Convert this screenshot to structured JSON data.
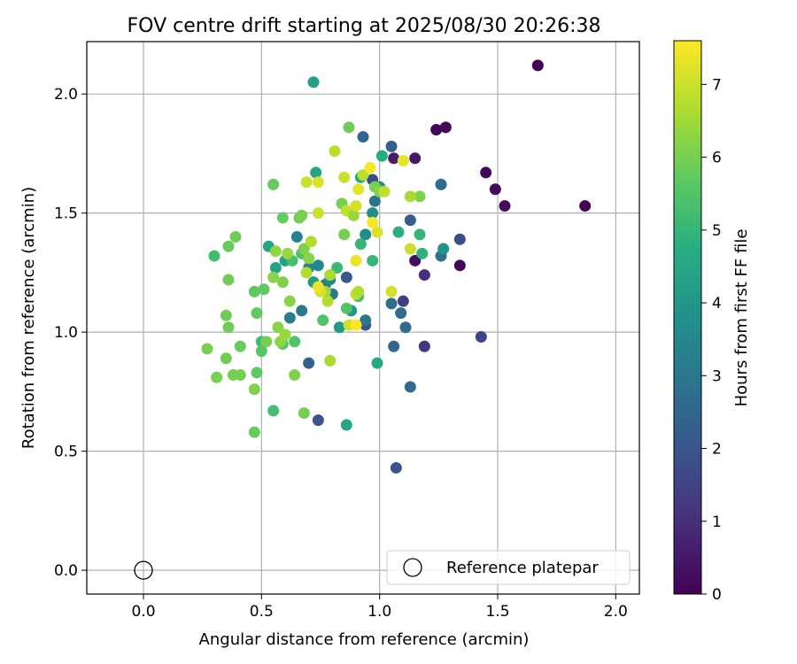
{
  "chart_data": {
    "type": "scatter",
    "title": "FOV centre drift starting at 2025/08/30 20:26:38",
    "xlabel": "Angular distance from reference (arcmin)",
    "ylabel": "Rotation from reference (arcmin)",
    "xlim": [
      -0.24,
      2.1
    ],
    "ylim": [
      -0.1,
      2.22
    ],
    "xticks": [
      0.0,
      0.5,
      1.0,
      1.5,
      2.0
    ],
    "xtick_labels": [
      "0.0",
      "0.5",
      "1.0",
      "1.5",
      "2.0"
    ],
    "yticks": [
      0.0,
      0.5,
      1.0,
      1.5,
      2.0
    ],
    "ytick_labels": [
      "0.0",
      "0.5",
      "1.0",
      "1.5",
      "2.0"
    ],
    "grid": true,
    "legend": {
      "position": "lower-right",
      "label": "Reference platepar"
    },
    "reference_point": {
      "x": 0.0,
      "y": 0.0,
      "marker": "open-circle"
    },
    "colorbar": {
      "label": "Hours from first FF file",
      "colormap": "viridis",
      "min": 0,
      "max": 7.6,
      "ticks": [
        0,
        1,
        2,
        3,
        4,
        5,
        6,
        7
      ],
      "tick_labels": [
        "0",
        "1",
        "2",
        "3",
        "4",
        "5",
        "6",
        "7"
      ]
    },
    "points": [
      [
        1.67,
        2.12,
        0.0
      ],
      [
        1.87,
        1.53,
        0.0
      ],
      [
        1.53,
        1.53,
        0.2
      ],
      [
        1.49,
        1.6,
        0.2
      ],
      [
        1.45,
        1.67,
        0.1
      ],
      [
        1.28,
        1.86,
        0.1
      ],
      [
        1.24,
        1.85,
        0.1
      ],
      [
        1.34,
        1.28,
        0.1
      ],
      [
        1.15,
        1.3,
        0.3
      ],
      [
        1.15,
        1.73,
        0.5
      ],
      [
        1.06,
        1.73,
        0.6
      ],
      [
        1.19,
        1.24,
        1.0
      ],
      [
        1.19,
        0.94,
        1.2
      ],
      [
        1.1,
        1.13,
        1.4
      ],
      [
        1.43,
        0.98,
        1.6
      ],
      [
        1.34,
        1.39,
        1.8
      ],
      [
        1.07,
        0.43,
        2.0
      ],
      [
        0.74,
        0.63,
        2.0
      ],
      [
        1.13,
        1.47,
        2.2
      ],
      [
        1.05,
        1.78,
        2.3
      ],
      [
        0.93,
        1.82,
        2.5
      ],
      [
        0.97,
        1.64,
        1.8
      ],
      [
        0.94,
        1.03,
        1.9
      ],
      [
        0.86,
        1.23,
        2.1
      ],
      [
        0.7,
        0.87,
        2.4
      ],
      [
        1.06,
        0.94,
        2.5
      ],
      [
        1.11,
        1.02,
        2.6
      ],
      [
        1.13,
        0.77,
        2.6
      ],
      [
        1.26,
        1.62,
        2.7
      ],
      [
        1.26,
        1.32,
        2.8
      ],
      [
        1.09,
        1.08,
        2.7
      ],
      [
        1.05,
        1.12,
        2.8
      ],
      [
        0.98,
        1.55,
        2.9
      ],
      [
        0.94,
        1.05,
        3.0
      ],
      [
        0.8,
        1.16,
        3.0
      ],
      [
        0.77,
        1.2,
        3.1
      ],
      [
        0.67,
        1.09,
        3.1
      ],
      [
        0.62,
        1.06,
        3.2
      ],
      [
        0.65,
        1.4,
        3.3
      ],
      [
        0.7,
        1.27,
        3.4
      ],
      [
        0.74,
        1.28,
        3.5
      ],
      [
        0.79,
        1.22,
        3.6
      ],
      [
        0.94,
        1.41,
        3.6
      ],
      [
        0.97,
        1.5,
        3.7
      ],
      [
        1.0,
        1.61,
        3.8
      ],
      [
        1.27,
        1.35,
        3.9
      ],
      [
        0.88,
        1.09,
        4.0
      ],
      [
        0.83,
        1.02,
        4.1
      ],
      [
        0.72,
        1.21,
        4.2
      ],
      [
        0.6,
        1.3,
        4.3
      ],
      [
        0.56,
        1.27,
        4.4
      ],
      [
        0.53,
        1.36,
        4.4
      ],
      [
        0.72,
        2.05,
        4.3
      ],
      [
        0.73,
        1.67,
        4.4
      ],
      [
        0.86,
        0.61,
        4.5
      ],
      [
        0.99,
        0.87,
        4.6
      ],
      [
        0.92,
        1.65,
        4.6
      ],
      [
        1.01,
        1.74,
        4.7
      ],
      [
        1.08,
        1.42,
        4.8
      ],
      [
        1.18,
        1.33,
        4.9
      ],
      [
        1.17,
        1.41,
        5.0
      ],
      [
        0.97,
        1.3,
        5.0
      ],
      [
        0.92,
        1.37,
        5.0
      ],
      [
        0.82,
        1.27,
        5.1
      ],
      [
        0.5,
        0.96,
        5.2
      ],
      [
        0.3,
        1.32,
        5.2
      ],
      [
        0.55,
        0.67,
        5.3
      ],
      [
        0.63,
        1.3,
        5.3
      ],
      [
        0.67,
        1.33,
        5.4
      ],
      [
        0.91,
        1.15,
        5.4
      ],
      [
        0.86,
        1.1,
        5.5
      ],
      [
        0.76,
        1.05,
        5.5
      ],
      [
        0.64,
        0.96,
        5.5
      ],
      [
        0.59,
        0.95,
        5.6
      ],
      [
        0.5,
        0.92,
        5.6
      ],
      [
        0.51,
        1.18,
        5.7
      ],
      [
        0.47,
        1.17,
        5.7
      ],
      [
        0.48,
        1.08,
        5.7
      ],
      [
        0.41,
        0.94,
        5.8
      ],
      [
        0.39,
        1.4,
        5.9
      ],
      [
        0.36,
        1.36,
        5.8
      ],
      [
        0.36,
        1.22,
        5.9
      ],
      [
        0.35,
        1.07,
        5.9
      ],
      [
        0.35,
        0.89,
        5.9
      ],
      [
        0.31,
        0.81,
        6.0
      ],
      [
        0.27,
        0.93,
        6.0
      ],
      [
        0.36,
        1.02,
        5.9
      ],
      [
        0.41,
        0.82,
        6.0
      ],
      [
        0.38,
        0.82,
        6.0
      ],
      [
        0.47,
        0.76,
        6.1
      ],
      [
        0.47,
        0.58,
        5.8
      ],
      [
        0.48,
        0.83,
        5.7
      ],
      [
        0.52,
        0.96,
        6.0
      ],
      [
        0.55,
        1.62,
        5.8
      ],
      [
        0.59,
        1.48,
        5.8
      ],
      [
        0.66,
        1.48,
        5.9
      ],
      [
        0.67,
        1.49,
        6.0
      ],
      [
        0.68,
        1.35,
        6.1
      ],
      [
        0.7,
        1.31,
        6.2
      ],
      [
        0.68,
        0.66,
        6.0
      ],
      [
        0.64,
        0.82,
        6.1
      ],
      [
        0.62,
        1.13,
        6.2
      ],
      [
        0.57,
        1.02,
        6.2
      ],
      [
        0.59,
        1.21,
        6.1
      ],
      [
        0.55,
        1.23,
        6.2
      ],
      [
        0.56,
        1.34,
        6.3
      ],
      [
        0.61,
        1.33,
        6.4
      ],
      [
        0.58,
        0.96,
        6.3
      ],
      [
        0.6,
        0.99,
        6.4
      ],
      [
        0.85,
        1.41,
        6.0
      ],
      [
        0.84,
        1.54,
        6.0
      ],
      [
        0.87,
        1.86,
        5.9
      ],
      [
        0.98,
        1.61,
        6.0
      ],
      [
        1.0,
        1.59,
        6.2
      ],
      [
        1.17,
        1.57,
        6.1
      ],
      [
        1.13,
        1.57,
        6.6
      ],
      [
        0.81,
        1.76,
        6.8
      ],
      [
        0.86,
        1.51,
        6.9
      ],
      [
        0.89,
        1.49,
        6.4
      ],
      [
        0.79,
        1.24,
        6.6
      ],
      [
        0.77,
        1.17,
        6.5
      ],
      [
        0.78,
        1.13,
        6.7
      ],
      [
        0.75,
        1.17,
        7.1
      ],
      [
        0.74,
        1.19,
        7.4
      ],
      [
        0.79,
        0.88,
        6.6
      ],
      [
        0.87,
        1.03,
        7.0
      ],
      [
        0.9,
        1.03,
        7.6
      ],
      [
        0.9,
        1.16,
        6.9
      ],
      [
        0.91,
        1.17,
        6.7
      ],
      [
        0.69,
        1.63,
        7.0
      ],
      [
        0.74,
        1.63,
        7.2
      ],
      [
        0.74,
        1.5,
        7.0
      ],
      [
        0.71,
        1.38,
        6.7
      ],
      [
        0.69,
        1.25,
        6.7
      ],
      [
        0.85,
        1.65,
        7.0
      ],
      [
        0.9,
        1.53,
        7.1
      ],
      [
        0.91,
        1.6,
        7.3
      ],
      [
        0.93,
        1.66,
        6.8
      ],
      [
        0.96,
        1.69,
        7.5
      ],
      [
        0.99,
        1.42,
        7.2
      ],
      [
        0.97,
        1.46,
        7.5
      ],
      [
        1.02,
        1.59,
        6.9
      ],
      [
        1.1,
        1.72,
        7.3
      ],
      [
        1.13,
        1.35,
        7.0
      ],
      [
        1.05,
        1.17,
        7.1
      ],
      [
        0.9,
        1.3,
        7.4
      ]
    ]
  }
}
